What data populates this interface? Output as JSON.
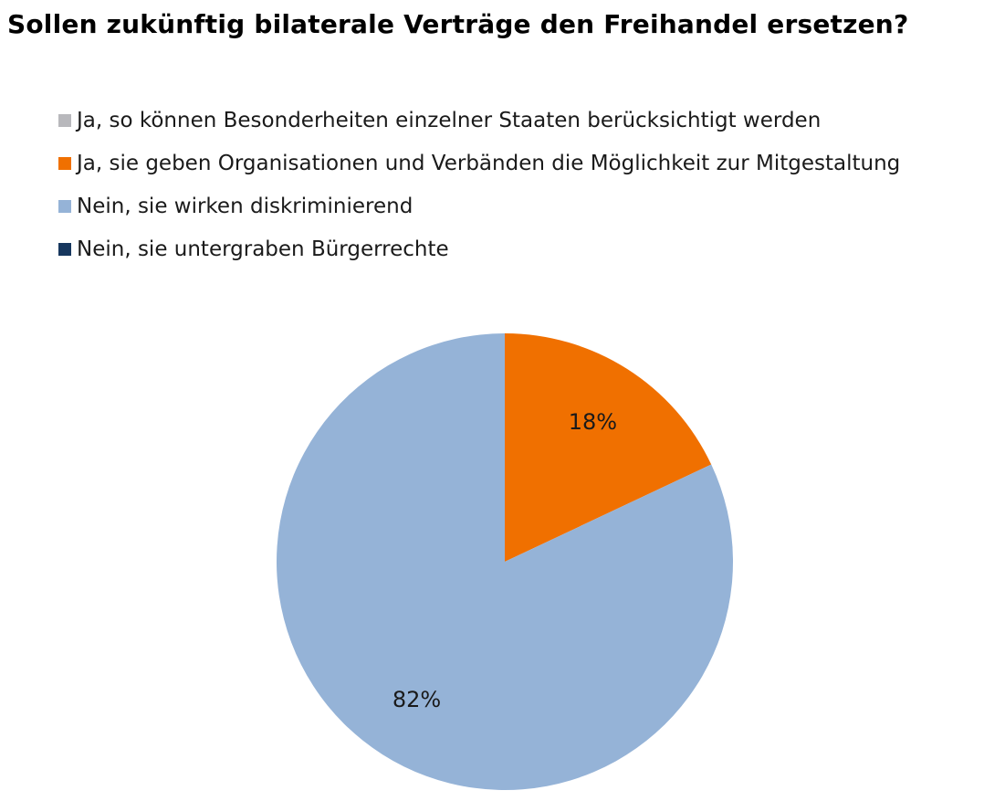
{
  "chart_data": {
    "type": "pie",
    "title": "Sollen zukünftig bilaterale Verträge den Freihandel ersetzen?",
    "legend_position": "top",
    "series": [
      {
        "name": "Ja, so können Besonderheiten einzelner Staaten berücksichtigt werden",
        "value": 0,
        "color": "#B8B8BC",
        "label": ""
      },
      {
        "name": "Ja, sie geben Organisationen und Verbänden die Möglichkeit zur Mitgestaltung",
        "value": 18,
        "color": "#F07000",
        "label": "18%"
      },
      {
        "name": "Nein, sie wirken diskriminierend",
        "value": 82,
        "color": "#95B3D7",
        "label": "82%"
      },
      {
        "name": "Nein, sie untergraben Bürgerrechte",
        "value": 0,
        "color": "#17375E",
        "label": ""
      }
    ]
  }
}
